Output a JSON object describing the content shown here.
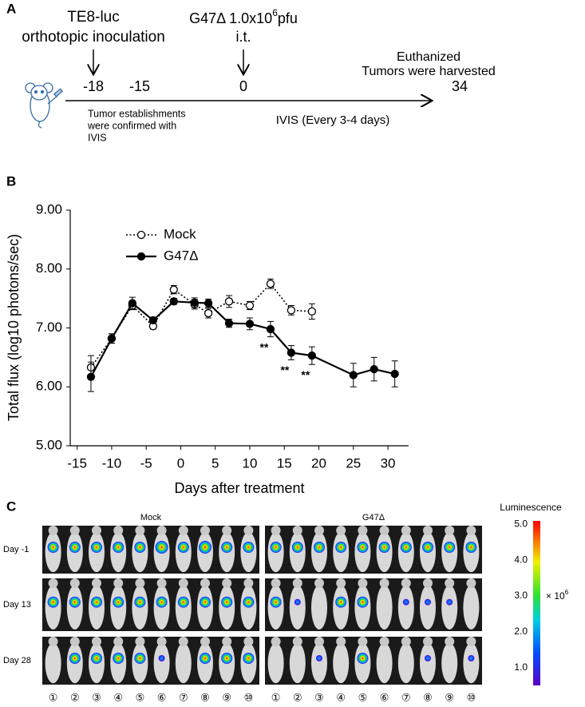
{
  "timeline": {
    "panel_label": "A",
    "inoculation": [
      "TE8-luc",
      "orthotopic inoculation"
    ],
    "treatment": {
      "prefix": "G47Δ 1.0x10",
      "exponent": "6",
      "unit": "pfu",
      "route": "i.t."
    },
    "end": [
      "Euthanized",
      "Tumors were harvested"
    ],
    "points": [
      "-18",
      "-15",
      "0",
      "34"
    ],
    "confirmation": [
      "Tumor establishments",
      "were confirmed with",
      "IVIS"
    ],
    "imaging": "IVIS (Every 3-4 days)"
  },
  "chart_data": {
    "type": "line",
    "panel_label": "B",
    "x_label": "Days after treatment",
    "y_label": "Total flux (log10 photons/sec)",
    "xlim": [
      -16,
      33
    ],
    "xticks": [
      -15,
      -10,
      -5,
      0,
      5,
      10,
      15,
      20,
      25,
      30
    ],
    "ylim": [
      5,
      9
    ],
    "yticks": [
      {
        "value": 5,
        "label": "5.00"
      },
      {
        "value": 6,
        "label": "6.00"
      },
      {
        "value": 7,
        "label": "7.00"
      },
      {
        "value": 8,
        "label": "8.00"
      },
      {
        "value": 9,
        "label": "9.00"
      }
    ],
    "legend": "upper left",
    "series": [
      {
        "name": "Mock",
        "color": "#000000",
        "dash": "dotted",
        "marker_fill": "#ffffff",
        "x": [
          -13,
          -10,
          -7,
          -4,
          -1,
          2,
          4,
          7,
          10,
          13,
          16,
          19
        ],
        "values": [
          6.33,
          6.82,
          7.38,
          7.03,
          7.65,
          7.4,
          7.25,
          7.45,
          7.38,
          7.75,
          7.3,
          7.28
        ],
        "errors": [
          0.2,
          0.08,
          0.07,
          0.05,
          0.07,
          0.08,
          0.08,
          0.1,
          0.07,
          0.08,
          0.08,
          0.13
        ]
      },
      {
        "name": "G47Δ",
        "color": "#000000",
        "dash": "solid",
        "marker_fill": "#000000",
        "x": [
          -13,
          -10,
          -7,
          -4,
          -1,
          2,
          4,
          7,
          10,
          13,
          16,
          19,
          25,
          28,
          31
        ],
        "values": [
          6.17,
          6.82,
          7.42,
          7.13,
          7.45,
          7.43,
          7.42,
          7.08,
          7.07,
          6.98,
          6.58,
          6.53,
          6.2,
          6.3,
          6.22
        ],
        "errors": [
          0.25,
          0.08,
          0.1,
          0.05,
          0.05,
          0.08,
          0.07,
          0.07,
          0.1,
          0.13,
          0.12,
          0.15,
          0.2,
          0.2,
          0.22
        ]
      }
    ],
    "annotations": [
      {
        "text": "**",
        "x": 13
      },
      {
        "text": "**",
        "x": 16
      },
      {
        "text": "**",
        "x": 19
      }
    ]
  },
  "imaging_panel": {
    "panel_label": "C",
    "groups": [
      "Mock",
      "G47Δ"
    ],
    "days": [
      "Day -1",
      "Day 13",
      "Day 28"
    ],
    "mice": [
      "①",
      "②",
      "③",
      "④",
      "⑤",
      "⑥",
      "⑦",
      "⑧",
      "⑨",
      "⑩"
    ],
    "colorbar": {
      "title": "Luminescence",
      "multiplier": "× 10",
      "exponent": "6",
      "range": [
        0.5,
        5.1
      ],
      "ticks": [
        {
          "value": 5,
          "label": "5.0"
        },
        {
          "value": 4,
          "label": "4.0"
        },
        {
          "value": 3,
          "label": "3.0"
        },
        {
          "value": 2,
          "label": "2.0"
        },
        {
          "value": 1,
          "label": "1.0"
        }
      ]
    }
  }
}
